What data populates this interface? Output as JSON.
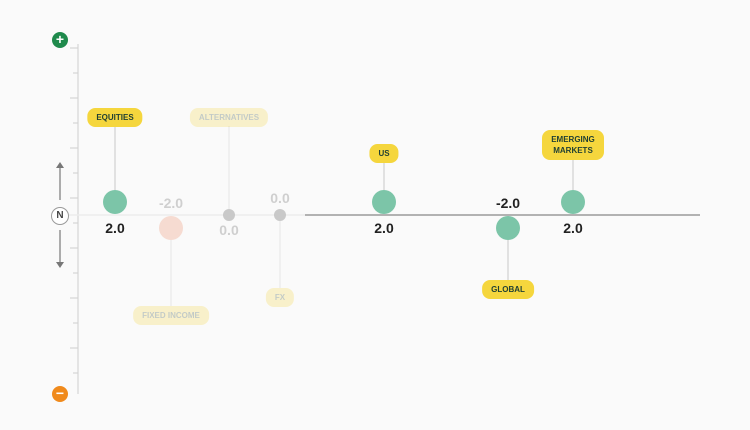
{
  "scale": {
    "positive_symbol": "+",
    "negative_symbol": "−",
    "neutral_label": "N"
  },
  "colors": {
    "positive_button": "#1f8a4c",
    "negative_button": "#f08a1c",
    "positive_point": "#7cc5a8",
    "negative_point": "#7cc5a8",
    "faded_negative_point": "#f4cdbf",
    "neutral_point": "#c9c9c9",
    "tag": "#f5d63d",
    "axis": "#9a9a9a"
  },
  "chart_data": {
    "type": "scatter",
    "ylim": [
      -3.0,
      3.0
    ],
    "grid": false,
    "points": [
      {
        "label": "EQUITIES",
        "value_text": "2.0",
        "value": 2.0,
        "faded": false
      },
      {
        "label": "FIXED INCOME",
        "value_text": "-2.0",
        "value": -2.0,
        "faded": true
      },
      {
        "label": "ALTERNATIVES",
        "value_text": "0.0",
        "value": 0.0,
        "faded": true
      },
      {
        "label": "FX",
        "value_text": "0.0",
        "value": 0.0,
        "faded": true
      },
      {
        "label": "US",
        "value_text": "2.0",
        "value": 2.0,
        "faded": false
      },
      {
        "label": "GLOBAL",
        "value_text": "-2.0",
        "value": -2.0,
        "faded": false
      },
      {
        "label": "EMERGING MARKETS",
        "value_text": "2.0",
        "value": 2.0,
        "faded": false
      }
    ]
  }
}
